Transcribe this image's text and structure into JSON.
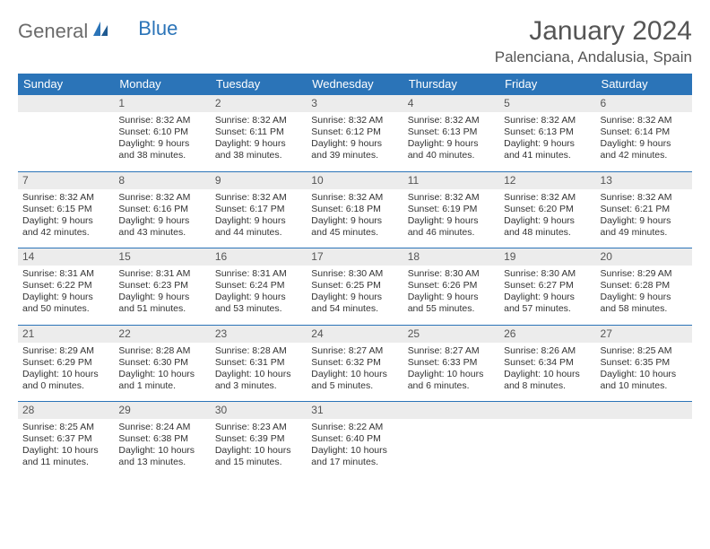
{
  "logo": {
    "text1": "General",
    "text2": "Blue"
  },
  "title": "January 2024",
  "location": "Palenciana, Andalusia, Spain",
  "colors": {
    "header_bg": "#2b74b8",
    "header_text": "#ffffff",
    "daynum_bg": "#ececec",
    "rule": "#2b74b8",
    "text": "#333333"
  },
  "weekdays": [
    "Sunday",
    "Monday",
    "Tuesday",
    "Wednesday",
    "Thursday",
    "Friday",
    "Saturday"
  ],
  "weeks": [
    [
      null,
      {
        "n": "1",
        "sr": "Sunrise: 8:32 AM",
        "ss": "Sunset: 6:10 PM",
        "dl": "Daylight: 9 hours and 38 minutes."
      },
      {
        "n": "2",
        "sr": "Sunrise: 8:32 AM",
        "ss": "Sunset: 6:11 PM",
        "dl": "Daylight: 9 hours and 38 minutes."
      },
      {
        "n": "3",
        "sr": "Sunrise: 8:32 AM",
        "ss": "Sunset: 6:12 PM",
        "dl": "Daylight: 9 hours and 39 minutes."
      },
      {
        "n": "4",
        "sr": "Sunrise: 8:32 AM",
        "ss": "Sunset: 6:13 PM",
        "dl": "Daylight: 9 hours and 40 minutes."
      },
      {
        "n": "5",
        "sr": "Sunrise: 8:32 AM",
        "ss": "Sunset: 6:13 PM",
        "dl": "Daylight: 9 hours and 41 minutes."
      },
      {
        "n": "6",
        "sr": "Sunrise: 8:32 AM",
        "ss": "Sunset: 6:14 PM",
        "dl": "Daylight: 9 hours and 42 minutes."
      }
    ],
    [
      {
        "n": "7",
        "sr": "Sunrise: 8:32 AM",
        "ss": "Sunset: 6:15 PM",
        "dl": "Daylight: 9 hours and 42 minutes."
      },
      {
        "n": "8",
        "sr": "Sunrise: 8:32 AM",
        "ss": "Sunset: 6:16 PM",
        "dl": "Daylight: 9 hours and 43 minutes."
      },
      {
        "n": "9",
        "sr": "Sunrise: 8:32 AM",
        "ss": "Sunset: 6:17 PM",
        "dl": "Daylight: 9 hours and 44 minutes."
      },
      {
        "n": "10",
        "sr": "Sunrise: 8:32 AM",
        "ss": "Sunset: 6:18 PM",
        "dl": "Daylight: 9 hours and 45 minutes."
      },
      {
        "n": "11",
        "sr": "Sunrise: 8:32 AM",
        "ss": "Sunset: 6:19 PM",
        "dl": "Daylight: 9 hours and 46 minutes."
      },
      {
        "n": "12",
        "sr": "Sunrise: 8:32 AM",
        "ss": "Sunset: 6:20 PM",
        "dl": "Daylight: 9 hours and 48 minutes."
      },
      {
        "n": "13",
        "sr": "Sunrise: 8:32 AM",
        "ss": "Sunset: 6:21 PM",
        "dl": "Daylight: 9 hours and 49 minutes."
      }
    ],
    [
      {
        "n": "14",
        "sr": "Sunrise: 8:31 AM",
        "ss": "Sunset: 6:22 PM",
        "dl": "Daylight: 9 hours and 50 minutes."
      },
      {
        "n": "15",
        "sr": "Sunrise: 8:31 AM",
        "ss": "Sunset: 6:23 PM",
        "dl": "Daylight: 9 hours and 51 minutes."
      },
      {
        "n": "16",
        "sr": "Sunrise: 8:31 AM",
        "ss": "Sunset: 6:24 PM",
        "dl": "Daylight: 9 hours and 53 minutes."
      },
      {
        "n": "17",
        "sr": "Sunrise: 8:30 AM",
        "ss": "Sunset: 6:25 PM",
        "dl": "Daylight: 9 hours and 54 minutes."
      },
      {
        "n": "18",
        "sr": "Sunrise: 8:30 AM",
        "ss": "Sunset: 6:26 PM",
        "dl": "Daylight: 9 hours and 55 minutes."
      },
      {
        "n": "19",
        "sr": "Sunrise: 8:30 AM",
        "ss": "Sunset: 6:27 PM",
        "dl": "Daylight: 9 hours and 57 minutes."
      },
      {
        "n": "20",
        "sr": "Sunrise: 8:29 AM",
        "ss": "Sunset: 6:28 PM",
        "dl": "Daylight: 9 hours and 58 minutes."
      }
    ],
    [
      {
        "n": "21",
        "sr": "Sunrise: 8:29 AM",
        "ss": "Sunset: 6:29 PM",
        "dl": "Daylight: 10 hours and 0 minutes."
      },
      {
        "n": "22",
        "sr": "Sunrise: 8:28 AM",
        "ss": "Sunset: 6:30 PM",
        "dl": "Daylight: 10 hours and 1 minute."
      },
      {
        "n": "23",
        "sr": "Sunrise: 8:28 AM",
        "ss": "Sunset: 6:31 PM",
        "dl": "Daylight: 10 hours and 3 minutes."
      },
      {
        "n": "24",
        "sr": "Sunrise: 8:27 AM",
        "ss": "Sunset: 6:32 PM",
        "dl": "Daylight: 10 hours and 5 minutes."
      },
      {
        "n": "25",
        "sr": "Sunrise: 8:27 AM",
        "ss": "Sunset: 6:33 PM",
        "dl": "Daylight: 10 hours and 6 minutes."
      },
      {
        "n": "26",
        "sr": "Sunrise: 8:26 AM",
        "ss": "Sunset: 6:34 PM",
        "dl": "Daylight: 10 hours and 8 minutes."
      },
      {
        "n": "27",
        "sr": "Sunrise: 8:25 AM",
        "ss": "Sunset: 6:35 PM",
        "dl": "Daylight: 10 hours and 10 minutes."
      }
    ],
    [
      {
        "n": "28",
        "sr": "Sunrise: 8:25 AM",
        "ss": "Sunset: 6:37 PM",
        "dl": "Daylight: 10 hours and 11 minutes."
      },
      {
        "n": "29",
        "sr": "Sunrise: 8:24 AM",
        "ss": "Sunset: 6:38 PM",
        "dl": "Daylight: 10 hours and 13 minutes."
      },
      {
        "n": "30",
        "sr": "Sunrise: 8:23 AM",
        "ss": "Sunset: 6:39 PM",
        "dl": "Daylight: 10 hours and 15 minutes."
      },
      {
        "n": "31",
        "sr": "Sunrise: 8:22 AM",
        "ss": "Sunset: 6:40 PM",
        "dl": "Daylight: 10 hours and 17 minutes."
      },
      null,
      null,
      null
    ]
  ]
}
